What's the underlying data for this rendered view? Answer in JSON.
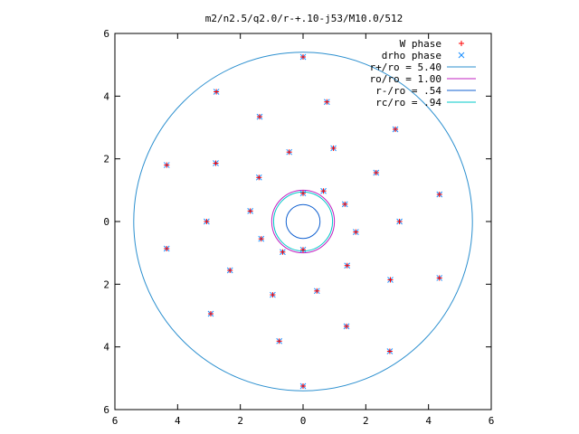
{
  "chart_data": {
    "type": "scatter",
    "title": "m2/n2.5/q2.0/r-+.10-j53/M10.0/512",
    "xlabel": "",
    "ylabel": "",
    "xlim": [
      -6,
      6
    ],
    "ylim": [
      -6,
      6
    ],
    "x_ticks": [
      "6",
      "4",
      "2",
      "0",
      "2",
      "4",
      "6"
    ],
    "y_ticks": [
      "6",
      "4",
      "2",
      "0",
      "2",
      "4",
      "6"
    ],
    "grid": false,
    "legend_position": "top-right",
    "series": [
      {
        "name": "W phase",
        "marker": "plus",
        "color": "#ff0000",
        "pattern": {
          "kind": "two-armed-spiral",
          "arms": 2,
          "r_inner": 0.9,
          "r_outer": 5.25,
          "total_turn_deg": 540,
          "inner_angle_deg": [
            90,
            270
          ],
          "rings": 17
        }
      },
      {
        "name": "drho phase",
        "marker": "cross",
        "color": "#1e90ff",
        "pattern": {
          "kind": "two-armed-spiral",
          "arms": 2,
          "r_inner": 0.9,
          "r_outer": 5.25,
          "total_turn_deg": 540,
          "inner_angle_deg": [
            90,
            270
          ],
          "rings": 17
        }
      },
      {
        "name": "r+/ro = 5.40",
        "type": "circle",
        "radius": 5.4,
        "color": "#2b8fcf"
      },
      {
        "name": "ro/ro = 1.00",
        "type": "circle",
        "radius": 1.0,
        "color": "#c020c0"
      },
      {
        "name": "r-/ro = .54",
        "type": "circle",
        "radius": 0.54,
        "color": "#1060d0"
      },
      {
        "name": "rc/ro = .94",
        "type": "circle",
        "radius": 0.94,
        "color": "#00c8c8"
      }
    ]
  }
}
